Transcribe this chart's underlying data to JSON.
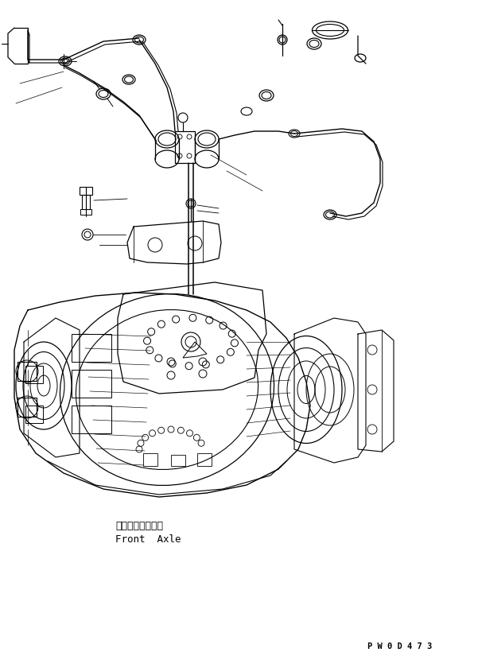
{
  "background_color": "#ffffff",
  "line_color": "#000000",
  "text_color": "#000000",
  "label_japanese": "フロントアクスル",
  "label_english": "Front  Axle",
  "watermark": "P W 0 D 4 7 3",
  "fig_width": 6.01,
  "fig_height": 8.25,
  "dpi": 100
}
